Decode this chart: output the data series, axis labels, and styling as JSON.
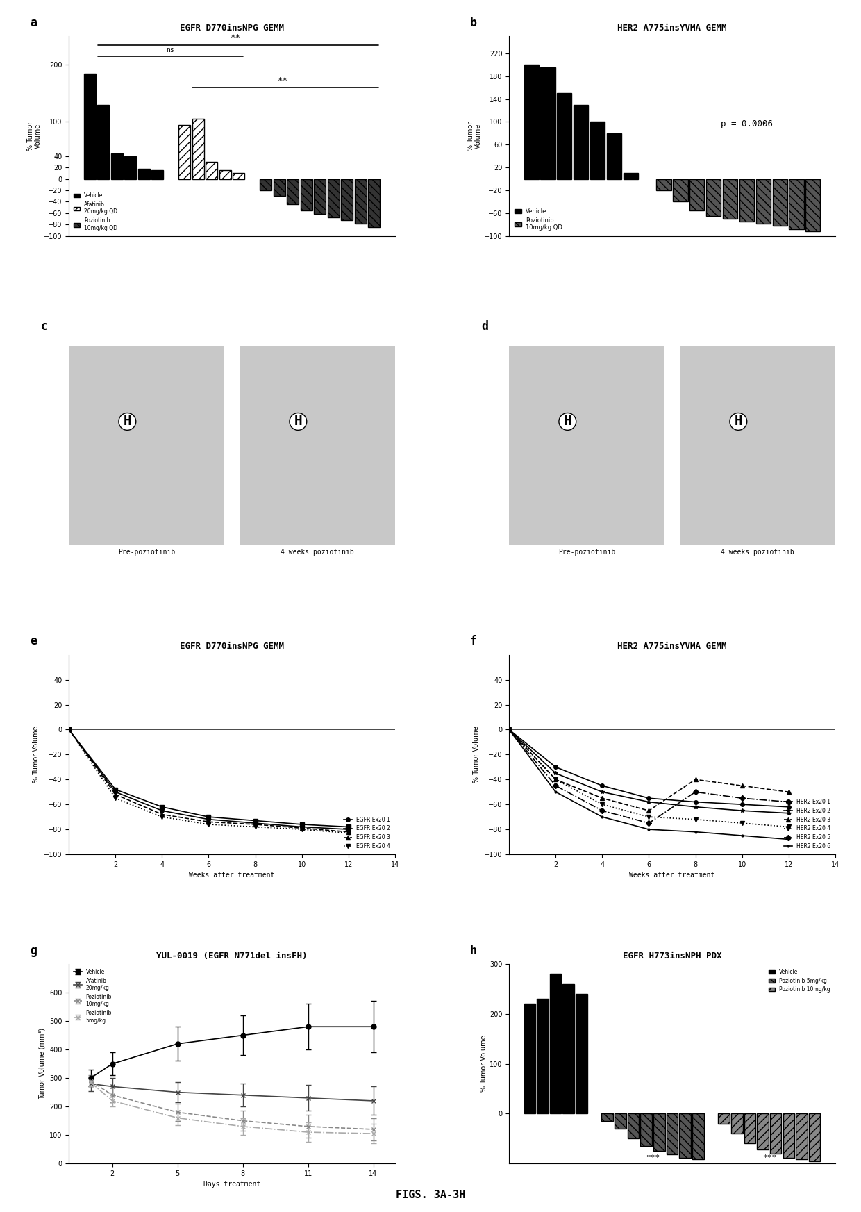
{
  "panel_a": {
    "title": "EGFR D770insNPG GEMM",
    "ylabel": "% Tumor\nVolume",
    "vehicle_bars": [
      185,
      130,
      45,
      40,
      18,
      15
    ],
    "afatinib_bars": [
      100,
      110,
      30,
      15
    ],
    "poziotinib_bars": [
      -20,
      -40,
      -55,
      -65,
      -70,
      -75,
      -80,
      -85,
      -90
    ],
    "ylim": [
      -100,
      250
    ],
    "yticks": [
      -100,
      -80,
      -60,
      -40,
      -20,
      0,
      20,
      40,
      100,
      200
    ],
    "ns_text": "ns",
    "star2_text": "**"
  },
  "panel_b": {
    "title": "HER2 A775insYVMA GEMM",
    "ylabel": "% Tumor\nVolume",
    "vehicle_bars": [
      200,
      195,
      150,
      130,
      100,
      80,
      10
    ],
    "poziotinib_bars": [
      -20,
      -40,
      -50,
      -60,
      -65,
      -70,
      -75,
      -80,
      -85,
      -90
    ],
    "pvalue": "p = 0.0006",
    "ylim": [
      -100,
      250
    ],
    "yticks": [
      -100,
      -60,
      -20,
      20,
      60,
      100,
      140,
      180,
      220
    ]
  },
  "panel_e": {
    "title": "EGFR D770insNPG GEMM",
    "xlabel": "Weeks after treatment",
    "ylabel": "% Tumor Volume",
    "xlim": [
      0,
      14
    ],
    "ylim": [
      -100,
      60
    ],
    "yticks": [
      -100,
      -80,
      -60,
      -40,
      -20,
      0,
      20,
      40
    ],
    "xticks": [
      2,
      4,
      6,
      8,
      10,
      12,
      14
    ],
    "series": [
      {
        "label": "EGFR Ex20 1",
        "x": [
          0,
          2,
          4,
          6,
          8,
          10,
          12
        ],
        "y": [
          0,
          -50,
          -65,
          -72,
          -75,
          -78,
          -80
        ],
        "marker": "o",
        "ls": "-"
      },
      {
        "label": "EGFR Ex20 2",
        "x": [
          0,
          2,
          4,
          6,
          8,
          10,
          12
        ],
        "y": [
          0,
          -48,
          -62,
          -70,
          -73,
          -76,
          -78
        ],
        "marker": "s",
        "ls": "-"
      },
      {
        "label": "EGFR Ex20 3",
        "x": [
          0,
          2,
          4,
          6,
          8,
          10,
          12
        ],
        "y": [
          0,
          -52,
          -68,
          -74,
          -76,
          -79,
          -82
        ],
        "marker": "^",
        "ls": "-"
      },
      {
        "label": "EGFR Ex20 4",
        "x": [
          0,
          2,
          4,
          6,
          8,
          10,
          12
        ],
        "y": [
          0,
          -55,
          -70,
          -76,
          -78,
          -80,
          -83
        ],
        "marker": "v",
        "ls": "-"
      }
    ]
  },
  "panel_f": {
    "title": "HER2 A775insYVMA GEMM",
    "xlabel": "Weeks after treatment",
    "ylabel": "% Tumor Volume",
    "xlim": [
      0,
      14
    ],
    "ylim": [
      -100,
      60
    ],
    "yticks": [
      -100,
      -80,
      -60,
      -40,
      -20,
      0,
      20,
      40
    ],
    "xticks": [
      2,
      4,
      6,
      8,
      10,
      12,
      14
    ],
    "series": [
      {
        "label": "HER2 Ex20 1",
        "x": [
          0,
          2,
          4,
          6,
          8,
          10,
          12
        ],
        "y": [
          0,
          -30,
          -45,
          -55,
          -58,
          -60,
          -62
        ],
        "marker": "o",
        "ls": "-"
      },
      {
        "label": "HER2 Ex20 2",
        "x": [
          0,
          2,
          4,
          6,
          8,
          10,
          12
        ],
        "y": [
          0,
          -35,
          -50,
          -58,
          -62,
          -65,
          -67
        ],
        "marker": "*",
        "ls": "-"
      },
      {
        "label": "HER2 Ex20 3",
        "x": [
          0,
          2,
          4,
          6,
          8,
          10,
          12
        ],
        "y": [
          0,
          -40,
          -55,
          -65,
          -40,
          -45,
          -50
        ],
        "marker": "^",
        "ls": "-"
      },
      {
        "label": "HER2 Ex20 4",
        "x": [
          0,
          2,
          4,
          6,
          8,
          10,
          12
        ],
        "y": [
          0,
          -40,
          -60,
          -70,
          -72,
          -75,
          -78
        ],
        "marker": "v",
        "ls": "-"
      },
      {
        "label": "HER2 Ex20 5",
        "x": [
          0,
          2,
          4,
          6,
          8,
          10,
          12
        ],
        "y": [
          0,
          -45,
          -65,
          -75,
          -50,
          -55,
          -58
        ],
        "marker": "D",
        "ls": "-"
      },
      {
        "label": "HER2 Ex20 6",
        "x": [
          0,
          2,
          4,
          6,
          8,
          10,
          12
        ],
        "y": [
          0,
          -50,
          -70,
          -80,
          -82,
          -85,
          -88
        ],
        "marker": ".",
        "ls": "-"
      }
    ]
  },
  "panel_g": {
    "title": "YUL-0019 (EGFR N771del insFH)",
    "xlabel": "Days treatment",
    "ylabel": "Tumor Volume (mm³)",
    "xlim": [
      0,
      15
    ],
    "ylim": [
      0,
      700
    ],
    "xticks": [
      2,
      5,
      8,
      11,
      14
    ],
    "yticks": [
      0,
      100,
      200,
      300,
      400,
      500,
      600
    ],
    "series": [
      {
        "label": "Vehicle",
        "x": [
          1,
          2,
          5,
          8,
          11,
          14
        ],
        "y": [
          300,
          350,
          420,
          450,
          480,
          480
        ],
        "yerr": [
          30,
          40,
          60,
          70,
          80,
          90
        ],
        "marker": "o",
        "color": "#222222",
        "ls": "-"
      },
      {
        "label": "Afatinib\n20mg/kg",
        "x": [
          1,
          2,
          5,
          8,
          11,
          14
        ],
        "y": [
          280,
          270,
          250,
          240,
          230,
          220
        ],
        "yerr": [
          25,
          30,
          35,
          40,
          45,
          50
        ],
        "marker": "x",
        "color": "#555555",
        "ls": "-"
      },
      {
        "label": "Poziotinib\n10mg/kg",
        "x": [
          1,
          2,
          5,
          8,
          11,
          14
        ],
        "y": [
          290,
          240,
          180,
          150,
          130,
          120
        ],
        "yerr": [
          20,
          25,
          30,
          35,
          40,
          40
        ],
        "marker": "x",
        "color": "#888888",
        "ls": "--"
      },
      {
        "label": "Poziotinib\n5mg/kg",
        "x": [
          1,
          2,
          5,
          8,
          11,
          14
        ],
        "y": [
          285,
          220,
          160,
          130,
          110,
          105
        ],
        "yerr": [
          15,
          20,
          25,
          30,
          35,
          35
        ],
        "marker": "x",
        "color": "#aaaaaa",
        "ls": "-."
      }
    ]
  },
  "panel_h": {
    "title": "EGFR H773insNPH PDX",
    "ylabel": "% Tumor Volume",
    "ylim": [
      -100,
      300
    ],
    "yticks": [
      0,
      100,
      200,
      300
    ],
    "vehicle_bars": [
      220,
      230,
      280,
      260,
      240
    ],
    "pozi5_bars": [
      -20,
      -40,
      -60,
      -70,
      -75,
      -80,
      -85,
      -90
    ],
    "pozi10_bars": [
      -25,
      -50,
      -65,
      -75,
      -82,
      -88,
      -92,
      -95
    ],
    "star3_text": "***"
  },
  "bottom_label": "FIGS. 3A-3H"
}
